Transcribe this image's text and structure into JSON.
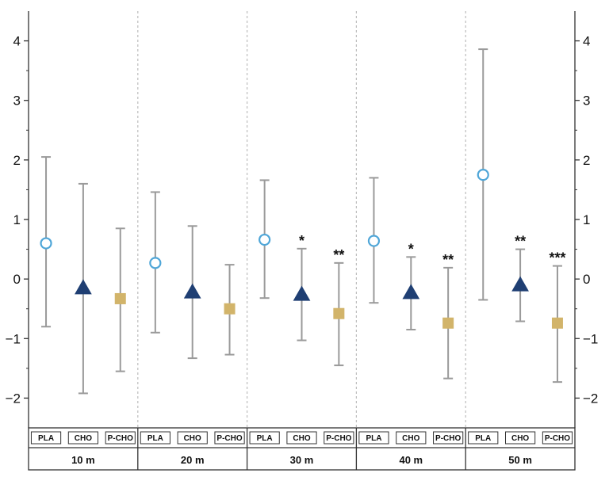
{
  "chart_data": {
    "type": "scatter",
    "ylim": [
      -2.5,
      4.5
    ],
    "y_ticks": [
      -2,
      -1,
      0,
      1,
      2,
      3,
      4
    ],
    "y_tick_labels": [
      "−2",
      "−1",
      "0",
      "1",
      "2",
      "3",
      "4"
    ],
    "grid": false,
    "groups": [
      {
        "label": "10 m",
        "points": [
          {
            "category": "PLA",
            "mean": 0.6,
            "lower": -0.8,
            "upper": 2.05,
            "sig": ""
          },
          {
            "category": "CHO",
            "mean": -0.15,
            "lower": -1.92,
            "upper": 1.6,
            "sig": ""
          },
          {
            "category": "P-CHO",
            "mean": -0.33,
            "lower": -1.55,
            "upper": 0.85,
            "sig": ""
          }
        ]
      },
      {
        "label": "20 m",
        "points": [
          {
            "category": "PLA",
            "mean": 0.27,
            "lower": -0.9,
            "upper": 1.46,
            "sig": ""
          },
          {
            "category": "CHO",
            "mean": -0.22,
            "lower": -1.33,
            "upper": 0.89,
            "sig": ""
          },
          {
            "category": "P-CHO",
            "mean": -0.5,
            "lower": -1.27,
            "upper": 0.24,
            "sig": ""
          }
        ]
      },
      {
        "label": "30 m",
        "points": [
          {
            "category": "PLA",
            "mean": 0.66,
            "lower": -0.32,
            "upper": 1.66,
            "sig": ""
          },
          {
            "category": "CHO",
            "mean": -0.26,
            "lower": -1.03,
            "upper": 0.51,
            "sig": "*"
          },
          {
            "category": "P-CHO",
            "mean": -0.58,
            "lower": -1.45,
            "upper": 0.27,
            "sig": "**"
          }
        ]
      },
      {
        "label": "40 m",
        "points": [
          {
            "category": "PLA",
            "mean": 0.64,
            "lower": -0.4,
            "upper": 1.7,
            "sig": ""
          },
          {
            "category": "CHO",
            "mean": -0.23,
            "lower": -0.85,
            "upper": 0.37,
            "sig": "*"
          },
          {
            "category": "P-CHO",
            "mean": -0.74,
            "lower": -1.67,
            "upper": 0.19,
            "sig": "**"
          }
        ]
      },
      {
        "label": "50 m",
        "points": [
          {
            "category": "PLA",
            "mean": 1.75,
            "lower": -0.35,
            "upper": 3.86,
            "sig": ""
          },
          {
            "category": "CHO",
            "mean": -0.1,
            "lower": -0.71,
            "upper": 0.5,
            "sig": "**"
          },
          {
            "category": "P-CHO",
            "mean": -0.74,
            "lower": -1.73,
            "upper": 0.22,
            "sig": "***"
          }
        ]
      }
    ],
    "marker_styles": {
      "PLA": {
        "shape": "circle",
        "fill": "#ffffff",
        "stroke": "#4fa6d8"
      },
      "CHO": {
        "shape": "triangle",
        "fill": "#1f3f73",
        "stroke": "#1f3f73"
      },
      "P-CHO": {
        "shape": "square",
        "fill": "#d2b46a",
        "stroke": "#d2b46a"
      }
    },
    "colors": {
      "errorbar": "#9a9a9a",
      "axis": "#333333",
      "divider": "#bdbdbd"
    }
  }
}
